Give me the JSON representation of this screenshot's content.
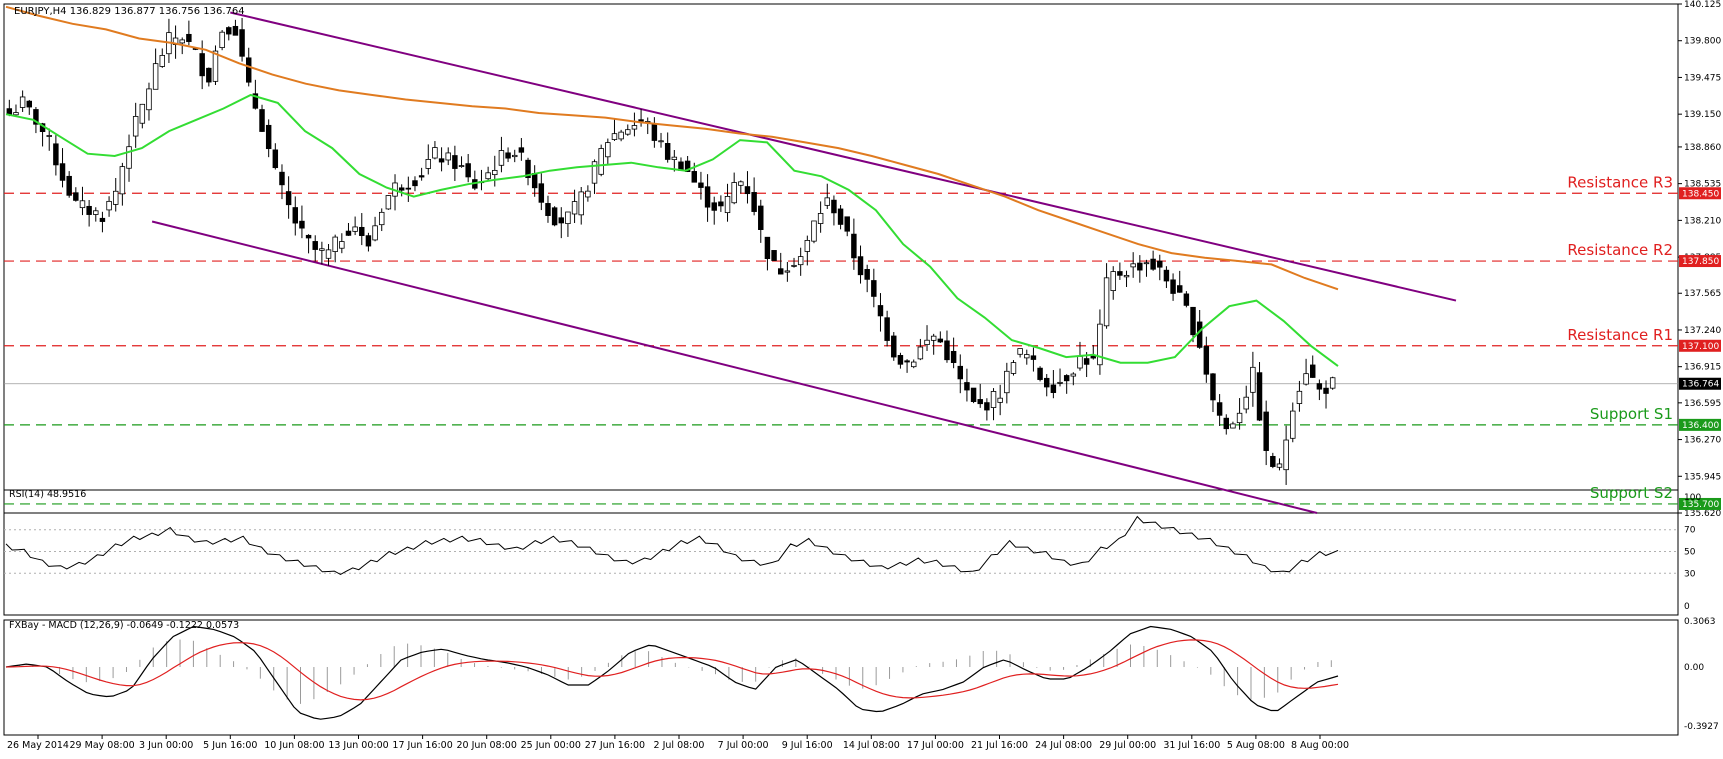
{
  "chart_data": {
    "type": "candlestick",
    "symbol_header": "EURJPY,H4  136.829 136.877 136.756 136.764",
    "last_price": 136.764,
    "ylim": [
      135.62,
      140.125
    ],
    "y_ticks": [
      140.125,
      139.8,
      139.475,
      139.15,
      138.86,
      138.535,
      138.21,
      137.885,
      137.565,
      137.24,
      136.915,
      136.595,
      136.27,
      135.945,
      135.62
    ],
    "x_ticks": [
      "26 May 2014",
      "29 May 08:00",
      "3 Jun 00:00",
      "5 Jun 16:00",
      "10 Jun 08:00",
      "13 Jun 00:00",
      "17 Jun 16:00",
      "20 Jun 08:00",
      "25 Jun 00:00",
      "27 Jun 16:00",
      "2 Jul 08:00",
      "7 Jul 00:00",
      "9 Jul 16:00",
      "14 Jul 08:00",
      "17 Jul 00:00",
      "21 Jul 16:00",
      "24 Jul 08:00",
      "29 Jul 00:00",
      "31 Jul 16:00",
      "5 Aug 08:00",
      "8 Aug 00:00"
    ],
    "close_path": [
      139.15,
      139.25,
      139.1,
      138.9,
      138.6,
      138.35,
      138.3,
      138.25,
      138.45,
      138.9,
      139.2,
      139.55,
      139.8,
      139.85,
      139.7,
      139.45,
      139.9,
      139.95,
      139.4,
      139.1,
      138.65,
      138.35,
      138.1,
      137.95,
      137.9,
      138.05,
      138.2,
      137.95,
      138.3,
      138.5,
      138.55,
      138.6,
      138.8,
      138.75,
      138.7,
      138.5,
      138.6,
      138.75,
      138.85,
      138.7,
      138.45,
      138.25,
      138.2,
      138.35,
      138.6,
      138.9,
      139.0,
      139.05,
      139.1,
      138.9,
      138.75,
      138.7,
      138.5,
      138.35,
      138.3,
      138.6,
      138.45,
      138.0,
      137.75,
      137.85,
      137.9,
      138.25,
      138.4,
      138.15,
      137.85,
      137.6,
      137.3,
      137.0,
      136.95,
      137.1,
      137.2,
      137.0,
      136.75,
      136.55,
      136.6,
      136.7,
      137.05,
      137.0,
      136.8,
      136.75,
      136.85,
      137.0,
      136.95,
      137.7,
      137.75,
      137.8,
      137.85,
      137.75,
      137.6,
      137.4,
      137.1,
      136.6,
      136.35,
      136.55,
      136.85,
      136.1,
      136.0,
      136.6,
      136.9,
      136.7,
      136.764
    ],
    "moving_averages": [
      {
        "color": "#33dd33",
        "values": [
          139.15,
          139.1,
          138.95,
          138.8,
          138.78,
          138.85,
          139.0,
          139.1,
          139.2,
          139.32,
          139.25,
          139.0,
          138.85,
          138.62,
          138.5,
          138.42,
          138.48,
          138.53,
          138.57,
          138.6,
          138.65,
          138.68,
          138.7,
          138.72,
          138.68,
          138.65,
          138.75,
          138.92,
          138.9,
          138.65,
          138.6,
          138.48,
          138.3,
          138.0,
          137.8,
          137.52,
          137.35,
          137.15,
          137.08,
          137.0,
          137.02,
          136.95,
          136.95,
          137.0,
          137.25,
          137.45,
          137.5,
          137.32,
          137.1,
          136.92
        ]
      },
      {
        "color": "#e07b20",
        "values": [
          140.1,
          140.02,
          139.95,
          139.9,
          139.82,
          139.78,
          139.72,
          139.6,
          139.5,
          139.42,
          139.36,
          139.32,
          139.28,
          139.25,
          139.22,
          139.2,
          139.16,
          139.14,
          139.12,
          139.08,
          139.05,
          139.02,
          138.98,
          138.95,
          138.9,
          138.85,
          138.78,
          138.7,
          138.62,
          138.52,
          138.42,
          138.3,
          138.2,
          138.1,
          138.0,
          137.92,
          137.88,
          137.85,
          137.82,
          137.7,
          137.6
        ]
      }
    ],
    "channel_lines": [
      {
        "color": "#800080",
        "from": [
          "5 Jun 16:00",
          140.05
        ],
        "to": [
          "8 Aug 00:00+",
          137.5
        ]
      },
      {
        "color": "#800080",
        "from": [
          "29 May 08:00+",
          138.2
        ],
        "to": [
          "8 Aug 00:00",
          135.62
        ]
      }
    ],
    "levels": [
      {
        "label": "Resistance R3",
        "value": 138.45,
        "tag": "138.450",
        "color": "#e02020"
      },
      {
        "label": "Resistance R2",
        "value": 137.85,
        "tag": "137.850",
        "color": "#e02020"
      },
      {
        "label": "Resistance R1",
        "value": 137.1,
        "tag": "137.100",
        "color": "#e02020"
      },
      {
        "label": "Support S1",
        "value": 136.4,
        "tag": "136.400",
        "color": "#1a9a1a"
      },
      {
        "label": "Support S2",
        "value": 135.7,
        "tag": "135.700",
        "color": "#1a9a1a"
      }
    ],
    "rsi": {
      "title": "RSI(14) 48.9516",
      "ylim": [
        0,
        100
      ],
      "ticks": [
        100,
        70,
        50,
        30,
        0
      ],
      "values": [
        55,
        50,
        40,
        35,
        38,
        45,
        55,
        62,
        65,
        70,
        62,
        58,
        60,
        62,
        52,
        45,
        40,
        35,
        30,
        33,
        40,
        48,
        52,
        58,
        60,
        62,
        60,
        55,
        52,
        58,
        62,
        58,
        52,
        45,
        40,
        42,
        50,
        58,
        62,
        55,
        45,
        40,
        38,
        55,
        60,
        52,
        45,
        40,
        35,
        38,
        42,
        40,
        35,
        30,
        45,
        58,
        52,
        48,
        40,
        38,
        52,
        60,
        80,
        75,
        70,
        65,
        60,
        52,
        45,
        35,
        30,
        40,
        48,
        49
      ]
    },
    "macd": {
      "title": "FXBay - MACD (12,26,9) -0.0649 -0.1222 0.0573",
      "ylim": [
        -0.3927,
        0.3063
      ],
      "ticks": [
        "0.3063",
        "0.00",
        "-0.3927"
      ],
      "macd": [
        0.0,
        0.02,
        0.0,
        -0.1,
        -0.18,
        -0.2,
        -0.15,
        0.05,
        0.2,
        0.27,
        0.25,
        0.2,
        0.1,
        -0.1,
        -0.3,
        -0.35,
        -0.33,
        -0.25,
        -0.1,
        0.05,
        0.1,
        0.12,
        0.08,
        0.05,
        0.03,
        0.0,
        -0.05,
        -0.12,
        -0.12,
        -0.02,
        0.1,
        0.15,
        0.1,
        0.05,
        0.0,
        -0.1,
        -0.15,
        0.0,
        0.05,
        -0.05,
        -0.15,
        -0.28,
        -0.3,
        -0.25,
        -0.18,
        -0.15,
        -0.1,
        0.0,
        0.05,
        -0.02,
        -0.08,
        -0.08,
        0.0,
        0.1,
        0.22,
        0.27,
        0.25,
        0.2,
        0.1,
        -0.1,
        -0.25,
        -0.3,
        -0.2,
        -0.1,
        -0.06
      ]
    }
  }
}
